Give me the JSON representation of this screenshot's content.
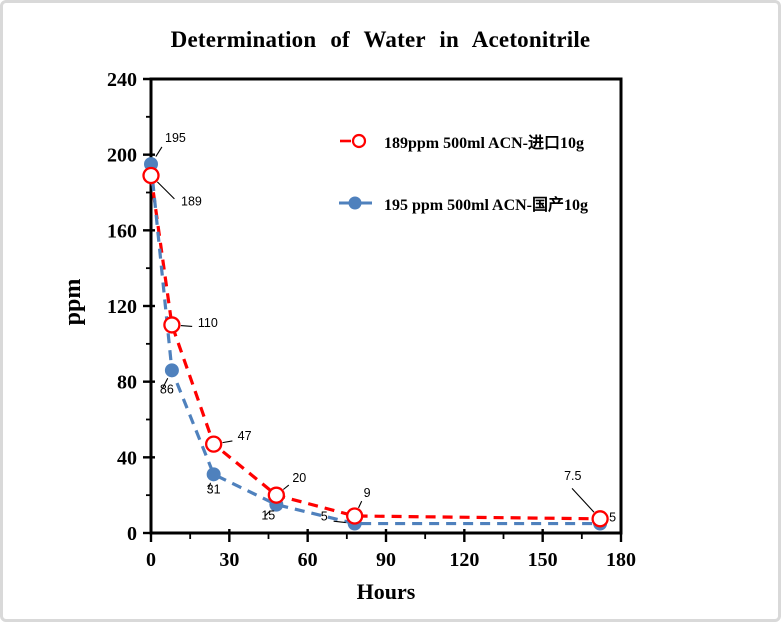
{
  "frame": {
    "background": "#ffffff",
    "border_color": "#d9d9d9"
  },
  "colors": {
    "imported_series": "#ff0000",
    "domestic_series": "#4f81bd",
    "axis": "#000000",
    "label_text": "#000000"
  },
  "chart_data": {
    "type": "line",
    "title": "Determination of Water in Acetonitrile",
    "xlabel": "Hours",
    "ylabel": "ppm",
    "xlim": [
      0,
      180
    ],
    "ylim": [
      0,
      240
    ],
    "x_major_ticks": [
      0,
      30,
      60,
      90,
      120,
      150,
      180
    ],
    "x_minor_step": 15,
    "y_major_ticks": [
      0,
      40,
      80,
      120,
      160,
      200,
      240
    ],
    "y_minor_step": 20,
    "grid": false,
    "legend_position": "upper-right-inside",
    "series": [
      {
        "name": "189ppm  500ml ACN-进口10g",
        "color": "#ff0000",
        "marker": "open-circle",
        "line_style": "dashed",
        "x": [
          0,
          8,
          24,
          48,
          78,
          172
        ],
        "values": [
          189,
          110,
          47,
          20,
          9,
          7.5
        ],
        "points": [
          {
            "x": 0,
            "y": 189,
            "label": "189",
            "dx": 30,
            "dy": 30
          },
          {
            "x": 8,
            "y": 110,
            "label": "110",
            "dx": 26,
            "dy": 2
          },
          {
            "x": 24,
            "y": 47,
            "label": "47",
            "dx": 24,
            "dy": -4
          },
          {
            "x": 48,
            "y": 20,
            "label": "20",
            "dx": 16,
            "dy": -13
          },
          {
            "x": 78,
            "y": 9,
            "label": "9",
            "dx": 9,
            "dy": -19
          },
          {
            "x": 172,
            "y": 7.5,
            "label": "7.5",
            "dx": -36,
            "dy": -39
          }
        ]
      },
      {
        "name": "195 ppm 500ml ACN-国产10g",
        "color": "#4f81bd",
        "marker": "filled-circle",
        "line_style": "dashed",
        "x": [
          0,
          8,
          24,
          48,
          78,
          172
        ],
        "values": [
          195,
          86,
          31,
          15,
          5,
          5
        ],
        "points": [
          {
            "x": 0,
            "y": 195,
            "label": "195",
            "dx": 14,
            "dy": -22
          },
          {
            "x": 8,
            "y": 86,
            "label": "86",
            "dx": -12,
            "dy": 23
          },
          {
            "x": 24,
            "y": 31,
            "label": "31",
            "dx": -7,
            "dy": 19
          },
          {
            "x": 48,
            "y": 15,
            "label": "15",
            "dx": -15,
            "dy": 15
          },
          {
            "x": 78,
            "y": 5,
            "label": "5",
            "dx": -27,
            "dy": -3,
            "anchor": "end"
          },
          {
            "x": 172,
            "y": 5,
            "label": "5",
            "dx": 9,
            "dy": -2
          }
        ]
      }
    ]
  }
}
